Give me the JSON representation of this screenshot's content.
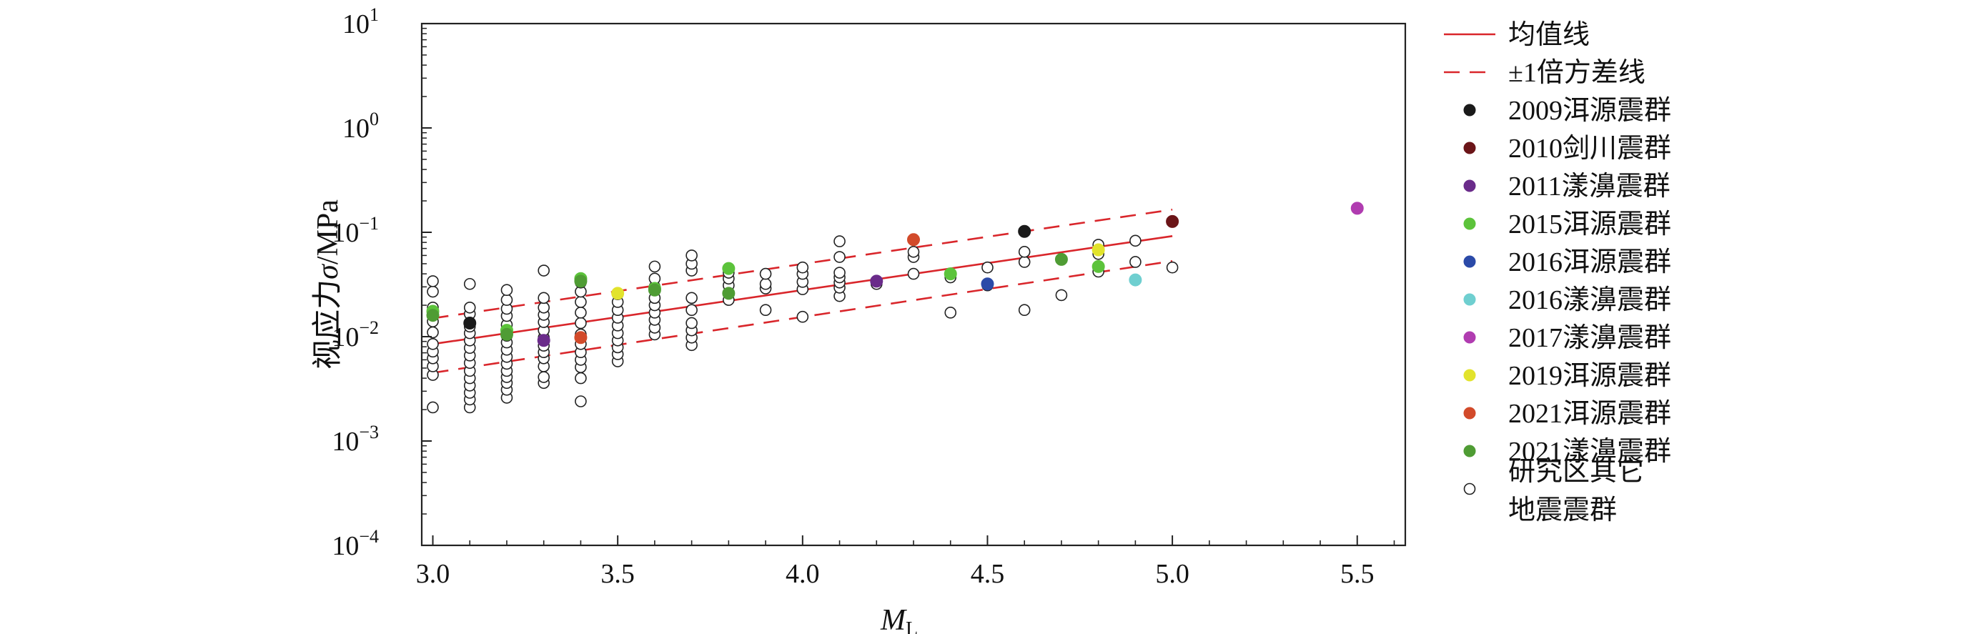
{
  "chart_data": {
    "type": "scatter",
    "xlabel_main": "M",
    "xlabel_sub": "L",
    "ylabel_prefix": "视应力",
    "ylabel_symbol": "σ",
    "ylabel_unit": "/MPa",
    "y_scale": "log",
    "xlim": [
      2.97,
      5.63
    ],
    "ylim": [
      0.0001,
      10
    ],
    "x_ticks": [
      "3.0",
      "3.5",
      "4.0",
      "4.5",
      "5.0",
      "5.5"
    ],
    "x_tick_values": [
      3.0,
      3.5,
      4.0,
      4.5,
      5.0,
      5.5
    ],
    "y_tick_exponents": [
      "1",
      "0",
      "−1",
      "−2",
      "−3",
      "−4"
    ],
    "y_tick_values": [
      10,
      1,
      0.1,
      0.01,
      0.001,
      0.0001
    ],
    "grid": false,
    "legend_position": "right",
    "mean_line": {
      "name": "均值线",
      "color": "#d9262b",
      "x": [
        3.0,
        5.0
      ],
      "y": [
        0.0085,
        0.092
      ]
    },
    "std_lines": {
      "name": "±1倍方差线",
      "color": "#d9262b",
      "upper": {
        "x": [
          3.0,
          5.0
        ],
        "y": [
          0.015,
          0.165
        ]
      },
      "lower": {
        "x": [
          3.0,
          5.0
        ],
        "y": [
          0.0045,
          0.053
        ]
      }
    },
    "series": [
      {
        "name": "2009洱源震群",
        "color": "#1a1a1a",
        "points": [
          [
            3.1,
            0.0135
          ],
          [
            4.6,
            0.102
          ]
        ]
      },
      {
        "name": "2010剑川震群",
        "color": "#6b1518",
        "points": [
          [
            5.0,
            0.127
          ]
        ]
      },
      {
        "name": "2011漾濞震群",
        "color": "#6a2b8a",
        "points": [
          [
            3.3,
            0.0092
          ],
          [
            4.2,
            0.034
          ]
        ]
      },
      {
        "name": "2015洱源震群",
        "color": "#5cc33b",
        "points": [
          [
            3.0,
            0.0175
          ],
          [
            3.2,
            0.0115
          ],
          [
            3.4,
            0.036
          ],
          [
            3.6,
            0.029
          ],
          [
            3.8,
            0.045
          ],
          [
            4.4,
            0.04
          ],
          [
            4.8,
            0.047
          ]
        ]
      },
      {
        "name": "2016洱源震群",
        "color": "#2b4aa8",
        "points": [
          [
            4.5,
            0.032
          ]
        ]
      },
      {
        "name": "2016漾濞震群",
        "color": "#6fcfd0",
        "points": [
          [
            4.9,
            0.035
          ]
        ]
      },
      {
        "name": "2017漾濞震群",
        "color": "#b03cb0",
        "points": [
          [
            5.5,
            0.17
          ]
        ]
      },
      {
        "name": "2019洱源震群",
        "color": "#e2e32c",
        "points": [
          [
            3.5,
            0.026
          ],
          [
            4.8,
            0.068
          ]
        ]
      },
      {
        "name": "2021洱源震群",
        "color": "#d24a2a",
        "points": [
          [
            3.4,
            0.0098
          ],
          [
            4.3,
            0.085
          ]
        ]
      },
      {
        "name": "2021漾濞震群",
        "color": "#4f9c34",
        "points": [
          [
            3.0,
            0.016
          ],
          [
            3.2,
            0.0105
          ],
          [
            3.4,
            0.034
          ],
          [
            3.6,
            0.028
          ],
          [
            3.8,
            0.026
          ],
          [
            4.7,
            0.055
          ]
        ]
      },
      {
        "name": [
          "研究区其它",
          "地震震群"
        ],
        "color": "#ffffff",
        "stroke": "#222222",
        "hollow": true,
        "points": [
          [
            3.0,
            0.0021
          ],
          [
            3.0,
            0.0043
          ],
          [
            3.0,
            0.0052
          ],
          [
            3.0,
            0.0062
          ],
          [
            3.0,
            0.0072
          ],
          [
            3.0,
            0.0085
          ],
          [
            3.0,
            0.011
          ],
          [
            3.0,
            0.014
          ],
          [
            3.0,
            0.019
          ],
          [
            3.0,
            0.027
          ],
          [
            3.0,
            0.034
          ],
          [
            3.1,
            0.0021
          ],
          [
            3.1,
            0.0025
          ],
          [
            3.1,
            0.0029
          ],
          [
            3.1,
            0.0034
          ],
          [
            3.1,
            0.004
          ],
          [
            3.1,
            0.0047
          ],
          [
            3.1,
            0.0056
          ],
          [
            3.1,
            0.0066
          ],
          [
            3.1,
            0.0078
          ],
          [
            3.1,
            0.0092
          ],
          [
            3.1,
            0.0108
          ],
          [
            3.1,
            0.0125
          ],
          [
            3.1,
            0.0165
          ],
          [
            3.1,
            0.019
          ],
          [
            3.1,
            0.032
          ],
          [
            3.2,
            0.0026
          ],
          [
            3.2,
            0.0031
          ],
          [
            3.2,
            0.0036
          ],
          [
            3.2,
            0.0041
          ],
          [
            3.2,
            0.0047
          ],
          [
            3.2,
            0.0055
          ],
          [
            3.2,
            0.0064
          ],
          [
            3.2,
            0.0075
          ],
          [
            3.2,
            0.0088
          ],
          [
            3.2,
            0.0102
          ],
          [
            3.2,
            0.013
          ],
          [
            3.2,
            0.0158
          ],
          [
            3.2,
            0.0185
          ],
          [
            3.2,
            0.0225
          ],
          [
            3.2,
            0.028
          ],
          [
            3.3,
            0.0036
          ],
          [
            3.3,
            0.0041
          ],
          [
            3.3,
            0.0052
          ],
          [
            3.3,
            0.0062
          ],
          [
            3.3,
            0.0071
          ],
          [
            3.3,
            0.0082
          ],
          [
            3.3,
            0.0098
          ],
          [
            3.3,
            0.0115
          ],
          [
            3.3,
            0.0138
          ],
          [
            3.3,
            0.0162
          ],
          [
            3.3,
            0.019
          ],
          [
            3.3,
            0.0235
          ],
          [
            3.3,
            0.043
          ],
          [
            3.4,
            0.0024
          ],
          [
            3.4,
            0.004
          ],
          [
            3.4,
            0.0051
          ],
          [
            3.4,
            0.006
          ],
          [
            3.4,
            0.0071
          ],
          [
            3.4,
            0.0085
          ],
          [
            3.4,
            0.0105
          ],
          [
            3.4,
            0.0135
          ],
          [
            3.4,
            0.017
          ],
          [
            3.4,
            0.0215
          ],
          [
            3.4,
            0.027
          ],
          [
            3.4,
            0.033
          ],
          [
            3.5,
            0.0058
          ],
          [
            3.5,
            0.0068
          ],
          [
            3.5,
            0.0079
          ],
          [
            3.5,
            0.0092
          ],
          [
            3.5,
            0.0108
          ],
          [
            3.5,
            0.0128
          ],
          [
            3.5,
            0.0152
          ],
          [
            3.5,
            0.018
          ],
          [
            3.5,
            0.0215
          ],
          [
            3.5,
            0.0255
          ],
          [
            3.6,
            0.0105
          ],
          [
            3.6,
            0.0122
          ],
          [
            3.6,
            0.0145
          ],
          [
            3.6,
            0.017
          ],
          [
            3.6,
            0.02
          ],
          [
            3.6,
            0.0235
          ],
          [
            3.6,
            0.03
          ],
          [
            3.6,
            0.036
          ],
          [
            3.6,
            0.047
          ],
          [
            3.7,
            0.0083
          ],
          [
            3.7,
            0.0098
          ],
          [
            3.7,
            0.0115
          ],
          [
            3.7,
            0.0135
          ],
          [
            3.7,
            0.018
          ],
          [
            3.7,
            0.0235
          ],
          [
            3.7,
            0.043
          ],
          [
            3.7,
            0.05
          ],
          [
            3.7,
            0.06
          ],
          [
            3.8,
            0.0225
          ],
          [
            3.8,
            0.0265
          ],
          [
            3.8,
            0.031
          ],
          [
            3.8,
            0.036
          ],
          [
            3.8,
            0.041
          ],
          [
            3.9,
            0.018
          ],
          [
            3.9,
            0.029
          ],
          [
            3.9,
            0.032
          ],
          [
            3.9,
            0.04
          ],
          [
            4.0,
            0.0155
          ],
          [
            4.0,
            0.0285
          ],
          [
            4.0,
            0.0335
          ],
          [
            4.0,
            0.04
          ],
          [
            4.0,
            0.046
          ],
          [
            4.1,
            0.0245
          ],
          [
            4.1,
            0.0295
          ],
          [
            4.1,
            0.033
          ],
          [
            4.1,
            0.037
          ],
          [
            4.1,
            0.041
          ],
          [
            4.1,
            0.058
          ],
          [
            4.1,
            0.082
          ],
          [
            4.2,
            0.032
          ],
          [
            4.3,
            0.04
          ],
          [
            4.3,
            0.058
          ],
          [
            4.3,
            0.065
          ],
          [
            4.4,
            0.017
          ],
          [
            4.4,
            0.037
          ],
          [
            4.5,
            0.031
          ],
          [
            4.5,
            0.046
          ],
          [
            4.6,
            0.018
          ],
          [
            4.6,
            0.052
          ],
          [
            4.6,
            0.065
          ],
          [
            4.7,
            0.025
          ],
          [
            4.8,
            0.042
          ],
          [
            4.8,
            0.062
          ],
          [
            4.8,
            0.076
          ],
          [
            4.9,
            0.052
          ],
          [
            4.9,
            0.083
          ],
          [
            5.0,
            0.046
          ]
        ]
      }
    ]
  }
}
